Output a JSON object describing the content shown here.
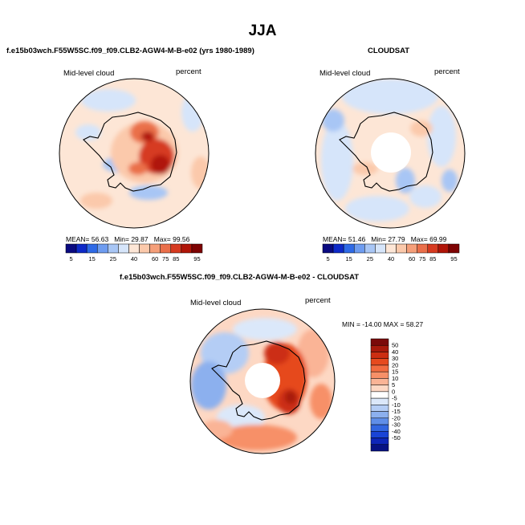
{
  "figure": {
    "season_title": "JJA",
    "panels": [
      {
        "title": "f.e15b03wch.F55W5SC.f09_f09.CLB2-AGW4-M-B-e02 (yrs 1980-1989)",
        "left_label": "Mid-level cloud",
        "right_label": "percent",
        "stats": {
          "mean_label": "MEAN=",
          "mean": "56.63",
          "min_label": "Min=",
          "min": "29.87",
          "max_label": "Max=",
          "max": "99.56"
        }
      },
      {
        "title": "CLOUDSAT",
        "left_label": "Mid-level cloud",
        "right_label": "percent",
        "stats": {
          "mean_label": "MEAN=",
          "mean": "51.46",
          "min_label": "Min=",
          "min": "27.79",
          "max_label": "Max=",
          "max": "69.99"
        }
      },
      {
        "title": "f.e15b03wch.F55W5SC.f09_f09.CLB2-AGW4-M-B-e02 - CLOUDSAT",
        "left_label": "Mid-level cloud",
        "right_label": "percent",
        "minmax_text": "MIN = -14.00   MAX =  58.27"
      }
    ],
    "abs_colorbar": {
      "labels": [
        "5",
        "15",
        "25",
        "40",
        "60",
        "75",
        "85",
        "95"
      ],
      "colors": [
        "#0a0a80",
        "#0e2ac8",
        "#2f6ae6",
        "#6e9cf0",
        "#a8c6f5",
        "#d6e5fa",
        "#fde6d6",
        "#fbc9ab",
        "#f59f7a",
        "#ea6f4a",
        "#d63a20",
        "#b01508",
        "#7e0303"
      ]
    },
    "diff_colorbar": {
      "labels": [
        "50",
        "40",
        "30",
        "20",
        "15",
        "10",
        "5",
        "0",
        "-5",
        "-10",
        "-15",
        "-20",
        "-30",
        "-40",
        "-50"
      ],
      "colors": [
        "#7a0a0a",
        "#a81a0c",
        "#cc2e12",
        "#e64a1e",
        "#f26c40",
        "#f79068",
        "#fab496",
        "#fdd8c4",
        "#ffffff",
        "#dbe8fa",
        "#b4cdf5",
        "#8cb0ee",
        "#5f8ee8",
        "#3266e0",
        "#1a44d6",
        "#0e26b8",
        "#071283"
      ]
    }
  }
}
